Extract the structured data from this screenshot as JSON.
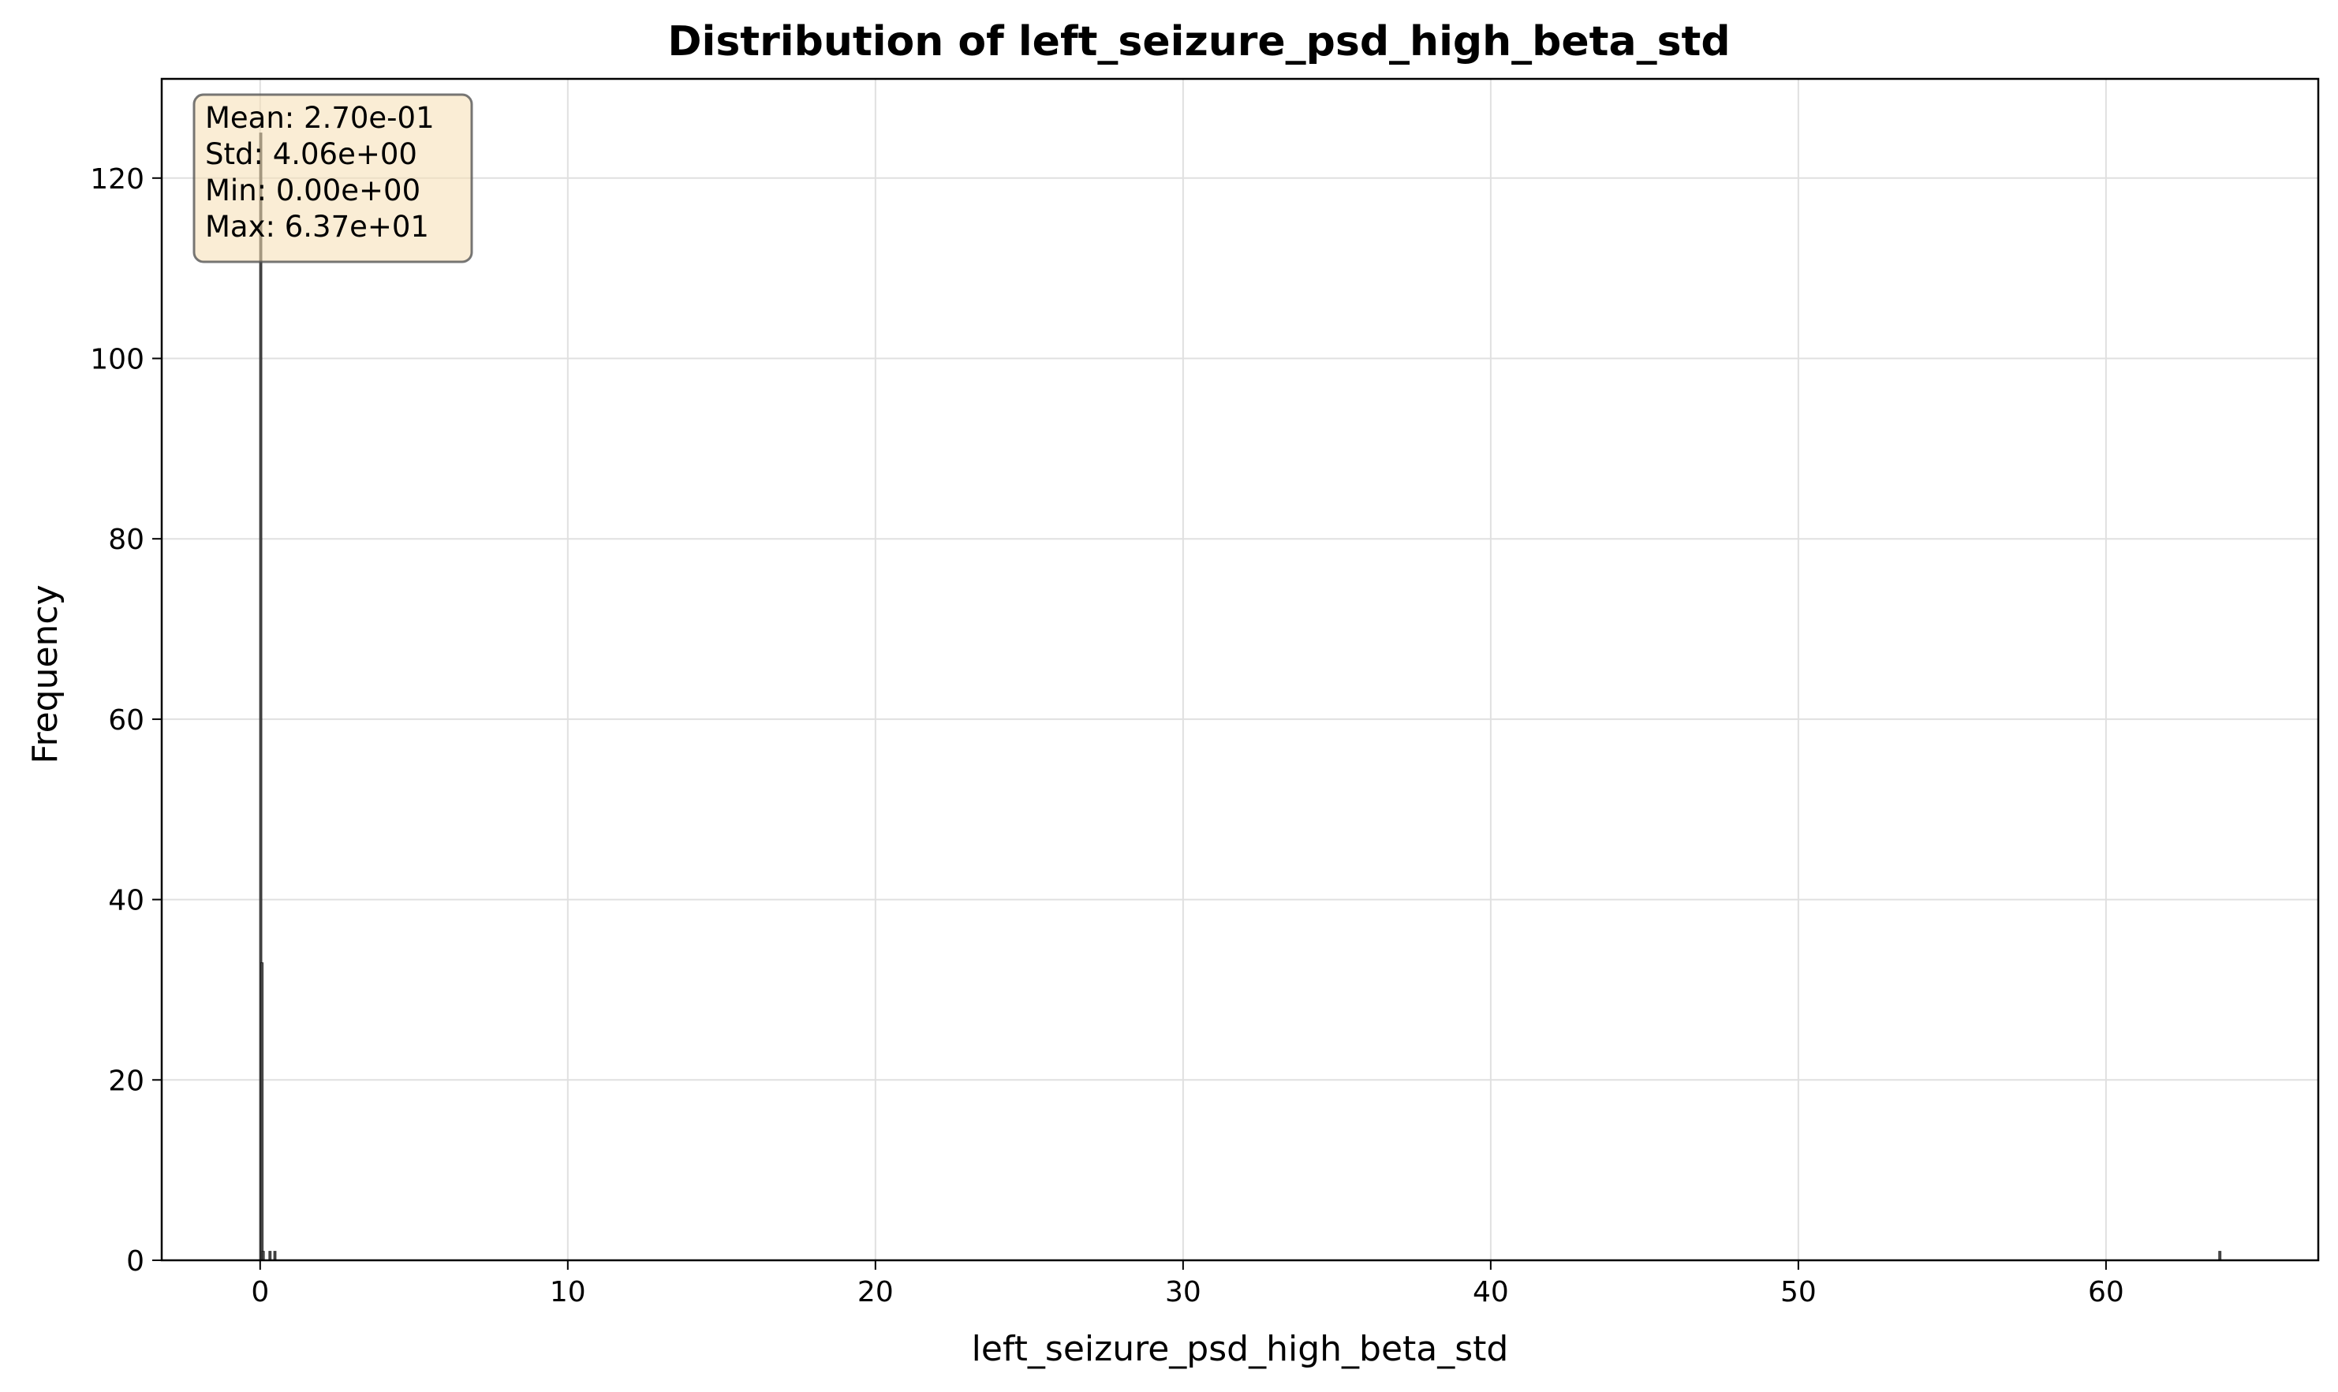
{
  "chart_data": {
    "type": "bar",
    "title": "Distribution of left_seizure_psd_high_beta_std",
    "xlabel": "left_seizure_psd_high_beta_std",
    "ylabel": "Frequency",
    "xlim": [
      -3.2,
      66.9
    ],
    "ylim": [
      0,
      131
    ],
    "xticks": [
      0,
      10,
      20,
      30,
      40,
      50,
      60
    ],
    "yticks": [
      0,
      20,
      40,
      60,
      80,
      100,
      120
    ],
    "grid": true,
    "bins": [
      {
        "x": 0.02,
        "value": 125
      },
      {
        "x": 0.06,
        "value": 33
      },
      {
        "x": 0.1,
        "value": 1
      },
      {
        "x": 0.32,
        "value": 1
      },
      {
        "x": 0.48,
        "value": 1
      },
      {
        "x": 63.7,
        "value": 1
      }
    ],
    "stats_box": {
      "lines": [
        "Mean: 2.70e-01",
        "Std: 4.06e+00",
        "Min: 0.00e+00",
        "Max: 6.37e+01"
      ],
      "position": "top-left"
    },
    "colors": {
      "bar": "#4d4d4d",
      "stats_bg": "#f5deb3",
      "grid": "#e0e0e0"
    }
  }
}
